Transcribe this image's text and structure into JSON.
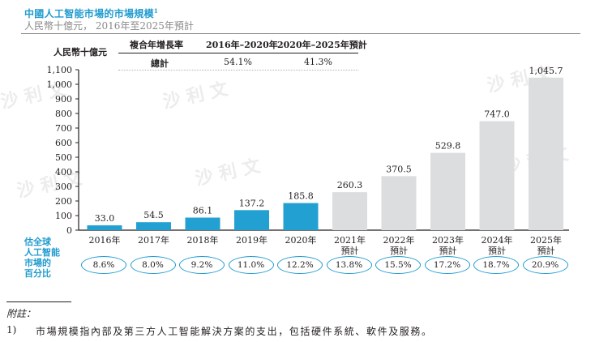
{
  "header": {
    "title": "中國人工智能市場的市場規模",
    "title_footnote": "1",
    "subtitle": "人民幣十億元， 2016年至2025年預計"
  },
  "cagr_table": {
    "unit_label": "人民幣十億元",
    "col_header": "複合年增長率",
    "period1": "2016年–2020年",
    "period2": "2020年–2025年預計",
    "row_label": "總計",
    "value1": "54.1%",
    "value2": "41.3%"
  },
  "share_row": {
    "label_lines": [
      "估全球",
      "人工智能",
      "市場的",
      "百分比"
    ],
    "values": [
      "8.6%",
      "8.0%",
      "9.2%",
      "11.0%",
      "12.2%",
      "13.8%",
      "15.5%",
      "17.2%",
      "18.7%",
      "20.9%"
    ]
  },
  "footnote": {
    "heading": "附註：",
    "number": "1)",
    "text": "市場規模指內部及第三方人工智能解決方案的支出，包括硬件系統、軟件及服務。"
  },
  "watermark_text": "沙 利 文",
  "colors": {
    "actual": "#22a0d2",
    "forecast": "#dcdddf",
    "accent": "#1f9bcf"
  },
  "chart_data": {
    "type": "bar",
    "title": "中國人工智能市場的市場規模",
    "ylabel": "人民幣十億元",
    "xlabel": "",
    "ylim": [
      0,
      1100
    ],
    "yticks": [
      0,
      100,
      200,
      300,
      400,
      500,
      600,
      700,
      800,
      900,
      1000,
      1100
    ],
    "ytick_labels": [
      "0",
      "100",
      "200",
      "300",
      "400",
      "500",
      "600",
      "700",
      "800",
      "900",
      "1,000",
      "1,100"
    ],
    "categories": [
      [
        "2016年"
      ],
      [
        "2017年"
      ],
      [
        "2018年"
      ],
      [
        "2019年"
      ],
      [
        "2020年"
      ],
      [
        "2021年",
        "預計"
      ],
      [
        "2022年",
        "預計"
      ],
      [
        "2023年",
        "預計"
      ],
      [
        "2024年",
        "預計"
      ],
      [
        "2025年",
        "預計"
      ]
    ],
    "values": [
      33.0,
      54.5,
      86.1,
      137.2,
      185.8,
      260.3,
      370.5,
      529.8,
      747.0,
      1045.7
    ],
    "value_labels": [
      "33.0",
      "54.5",
      "86.1",
      "137.2",
      "185.8",
      "260.3",
      "370.5",
      "529.8",
      "747.0",
      "1,045.7"
    ],
    "forecast": [
      false,
      false,
      false,
      false,
      false,
      true,
      true,
      true,
      true,
      true
    ],
    "grid": false,
    "legend": "none"
  }
}
